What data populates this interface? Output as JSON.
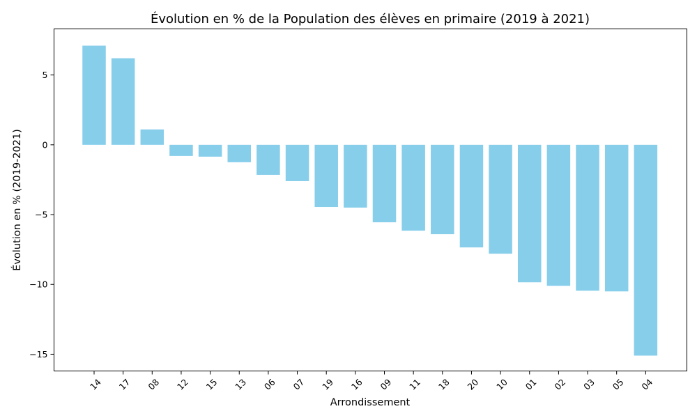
{
  "chart_data": {
    "type": "bar",
    "title": "Évolution en % de la Population des élèves en primaire (2019 à 2021)",
    "xlabel": "Arrondissement",
    "ylabel": "Évolution en % (2019-2021)",
    "categories": [
      "14",
      "17",
      "08",
      "12",
      "15",
      "13",
      "06",
      "07",
      "19",
      "16",
      "09",
      "11",
      "18",
      "20",
      "10",
      "01",
      "02",
      "03",
      "05",
      "04"
    ],
    "values": [
      7.1,
      6.2,
      1.1,
      -0.8,
      -0.85,
      -1.25,
      -2.15,
      -2.6,
      -4.45,
      -4.5,
      -5.55,
      -6.15,
      -6.4,
      -7.35,
      -7.8,
      -9.85,
      -10.1,
      -10.45,
      -10.5,
      -15.1
    ],
    "yticks": [
      5,
      0,
      -5,
      -10,
      -15
    ],
    "ytick_labels": [
      "5",
      "0",
      "−5",
      "−10",
      "−15"
    ],
    "ylim": [
      -16.2,
      8.3
    ],
    "grid": false,
    "legend": "none",
    "bar_color": "#87ceeb"
  }
}
